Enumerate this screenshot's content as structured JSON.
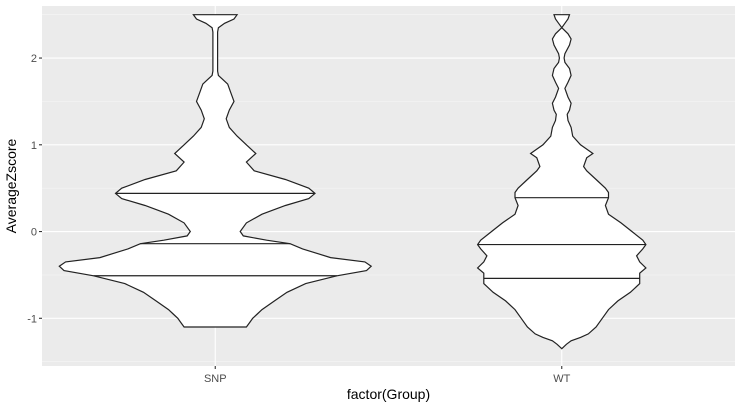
{
  "chart_data": {
    "type": "violin",
    "xlabel": "factor(Group)",
    "ylabel": "AverageZscore",
    "categories": [
      "SNP",
      "WT"
    ],
    "ylim": [
      -1.55,
      2.6
    ],
    "yticks": [
      -1,
      0,
      1,
      2
    ],
    "ytick_labels": [
      "-1 -",
      "0 -",
      "1 -",
      "2 -"
    ],
    "draw_quantiles": [
      0.25,
      0.5,
      0.75
    ],
    "grid": true,
    "violins": [
      {
        "category": "SNP",
        "y_min": -1.1,
        "y_max": 2.5,
        "quantiles": [
          -0.51,
          -0.14,
          0.44
        ],
        "profile": [
          [
            2.5,
            0.14
          ],
          [
            2.45,
            0.12
          ],
          [
            2.4,
            0.06
          ],
          [
            2.35,
            0.02
          ],
          [
            2.3,
            0.015
          ],
          [
            2.2,
            0.015
          ],
          [
            2.0,
            0.015
          ],
          [
            1.85,
            0.015
          ],
          [
            1.8,
            0.02
          ],
          [
            1.75,
            0.05
          ],
          [
            1.7,
            0.08
          ],
          [
            1.6,
            0.1
          ],
          [
            1.5,
            0.12
          ],
          [
            1.4,
            0.09
          ],
          [
            1.3,
            0.07
          ],
          [
            1.2,
            0.09
          ],
          [
            1.1,
            0.14
          ],
          [
            1.0,
            0.2
          ],
          [
            0.9,
            0.26
          ],
          [
            0.8,
            0.2
          ],
          [
            0.7,
            0.25
          ],
          [
            0.6,
            0.45
          ],
          [
            0.5,
            0.6
          ],
          [
            0.44,
            0.64
          ],
          [
            0.38,
            0.6
          ],
          [
            0.3,
            0.45
          ],
          [
            0.2,
            0.3
          ],
          [
            0.1,
            0.2
          ],
          [
            0.0,
            0.16
          ],
          [
            -0.05,
            0.18
          ],
          [
            -0.1,
            0.33
          ],
          [
            -0.14,
            0.48
          ],
          [
            -0.2,
            0.56
          ],
          [
            -0.3,
            0.74
          ],
          [
            -0.35,
            0.96
          ],
          [
            -0.4,
            1.0
          ],
          [
            -0.45,
            0.97
          ],
          [
            -0.51,
            0.78
          ],
          [
            -0.6,
            0.58
          ],
          [
            -0.7,
            0.46
          ],
          [
            -0.8,
            0.38
          ],
          [
            -0.9,
            0.3
          ],
          [
            -0.95,
            0.27
          ],
          [
            -1.0,
            0.24
          ],
          [
            -1.05,
            0.22
          ],
          [
            -1.1,
            0.2
          ]
        ]
      },
      {
        "category": "WT",
        "y_min": -1.35,
        "y_max": 2.5,
        "quantiles": [
          -0.54,
          -0.15,
          0.39
        ],
        "profile": [
          [
            2.5,
            0.05
          ],
          [
            2.45,
            0.04
          ],
          [
            2.4,
            0.02
          ],
          [
            2.35,
            0.0
          ],
          [
            2.28,
            0.04
          ],
          [
            2.22,
            0.06
          ],
          [
            2.15,
            0.05
          ],
          [
            2.05,
            0.02
          ],
          [
            2.0,
            0.015
          ],
          [
            1.95,
            0.02
          ],
          [
            1.88,
            0.05
          ],
          [
            1.8,
            0.06
          ],
          [
            1.72,
            0.04
          ],
          [
            1.65,
            0.02
          ],
          [
            1.55,
            0.04
          ],
          [
            1.48,
            0.06
          ],
          [
            1.4,
            0.05
          ],
          [
            1.35,
            0.035
          ],
          [
            1.28,
            0.04
          ],
          [
            1.2,
            0.06
          ],
          [
            1.1,
            0.07
          ],
          [
            1.0,
            0.12
          ],
          [
            0.95,
            0.16
          ],
          [
            0.9,
            0.2
          ],
          [
            0.85,
            0.16
          ],
          [
            0.75,
            0.14
          ],
          [
            0.7,
            0.16
          ],
          [
            0.6,
            0.22
          ],
          [
            0.5,
            0.28
          ],
          [
            0.45,
            0.3
          ],
          [
            0.39,
            0.3
          ],
          [
            0.3,
            0.28
          ],
          [
            0.2,
            0.3
          ],
          [
            0.1,
            0.38
          ],
          [
            0.0,
            0.45
          ],
          [
            -0.1,
            0.52
          ],
          [
            -0.15,
            0.54
          ],
          [
            -0.2,
            0.52
          ],
          [
            -0.28,
            0.48
          ],
          [
            -0.35,
            0.5
          ],
          [
            -0.42,
            0.54
          ],
          [
            -0.48,
            0.5
          ],
          [
            -0.54,
            0.5
          ],
          [
            -0.6,
            0.5
          ],
          [
            -0.7,
            0.44
          ],
          [
            -0.8,
            0.36
          ],
          [
            -0.9,
            0.3
          ],
          [
            -1.0,
            0.26
          ],
          [
            -1.1,
            0.22
          ],
          [
            -1.18,
            0.17
          ],
          [
            -1.22,
            0.12
          ],
          [
            -1.26,
            0.06
          ],
          [
            -1.3,
            0.03
          ],
          [
            -1.35,
            0.0
          ]
        ]
      }
    ]
  }
}
